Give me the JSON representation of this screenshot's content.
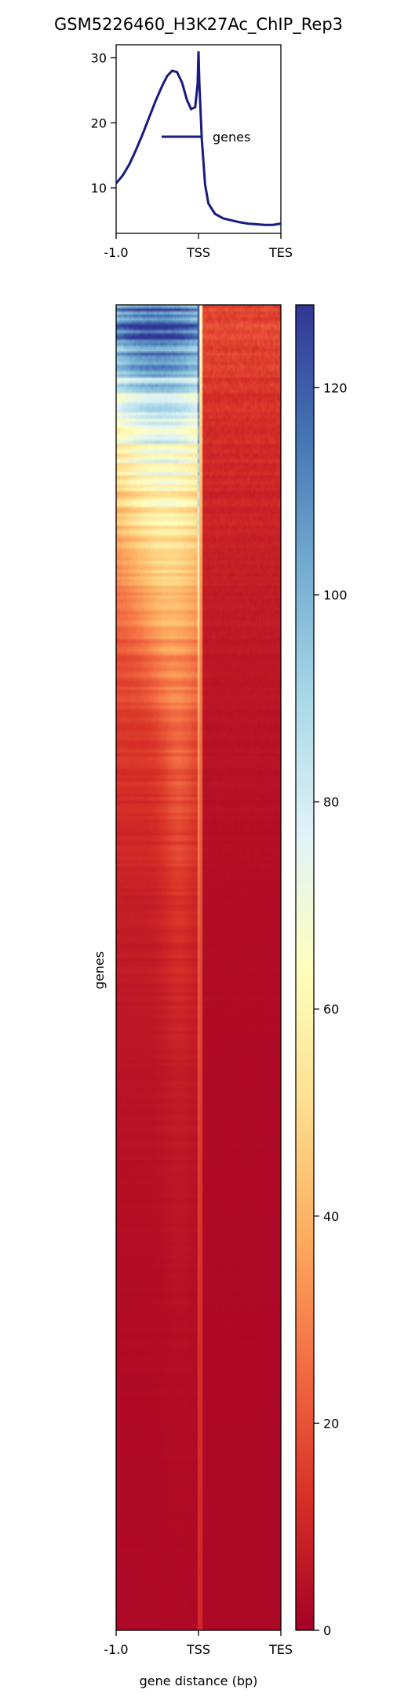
{
  "title": "GSM5226460_H3K27Ac_ChIP_Rep3",
  "chart_data": [
    {
      "type": "line",
      "panel": "profile",
      "x_ticks": [
        "-1.0",
        "TSS",
        "TES"
      ],
      "y_ticks": [
        10,
        20,
        30
      ],
      "ylim": [
        3,
        32
      ],
      "legend": "center-right",
      "series": [
        {
          "name": "genes",
          "color": "#1a1a80",
          "points": [
            [
              0.0,
              10.7
            ],
            [
              0.04,
              11.9
            ],
            [
              0.08,
              13.6
            ],
            [
              0.12,
              15.8
            ],
            [
              0.16,
              18.2
            ],
            [
              0.2,
              20.8
            ],
            [
              0.24,
              23.4
            ],
            [
              0.28,
              25.7
            ],
            [
              0.31,
              27.2
            ],
            [
              0.34,
              28.0
            ],
            [
              0.37,
              27.8
            ],
            [
              0.4,
              26.2
            ],
            [
              0.43,
              23.5
            ],
            [
              0.455,
              22.1
            ],
            [
              0.48,
              22.4
            ],
            [
              0.495,
              26.0
            ],
            [
              0.5,
              31.0
            ],
            [
              0.505,
              26.0
            ],
            [
              0.52,
              17.5
            ],
            [
              0.54,
              10.5
            ],
            [
              0.56,
              7.6
            ],
            [
              0.6,
              6.0
            ],
            [
              0.65,
              5.3
            ],
            [
              0.7,
              5.0
            ],
            [
              0.75,
              4.7
            ],
            [
              0.8,
              4.5
            ],
            [
              0.85,
              4.4
            ],
            [
              0.9,
              4.3
            ],
            [
              0.95,
              4.3
            ],
            [
              1.0,
              4.5
            ]
          ]
        }
      ]
    },
    {
      "type": "heatmap",
      "panel": "heatmap",
      "x_ticks": [
        "-1.0",
        "TSS",
        "TES"
      ],
      "xlabel": "gene distance (bp)",
      "ylabel": "genes",
      "colormap": "RdYlBu",
      "colorbar": {
        "range": [
          0,
          128
        ],
        "ticks": [
          0,
          20,
          40,
          60,
          80,
          100,
          120
        ]
      },
      "rows_sorted": "descending mean signal",
      "description_profile": {
        "peak_at_tss": true,
        "upstream_signal_high_rows": 125,
        "downstream_signal_typical": 12,
        "background": 2
      }
    }
  ]
}
